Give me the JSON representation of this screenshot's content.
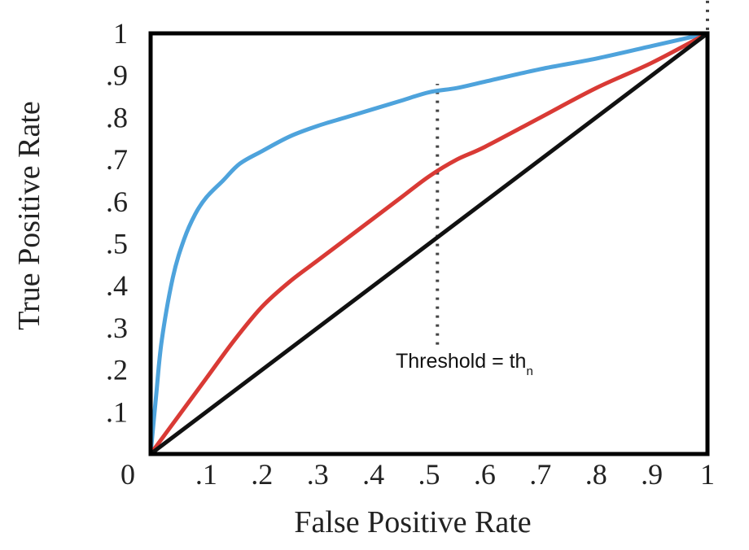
{
  "chart_data": {
    "type": "line",
    "title": "",
    "xlabel": "False Positive Rate",
    "ylabel": "True Positive Rate",
    "xlim": [
      0,
      1
    ],
    "ylim": [
      0,
      1
    ],
    "x_ticks": [
      "0",
      ".1",
      ".2",
      ".3",
      ".4",
      ".5",
      ".6",
      ".7",
      ".8",
      ".9",
      "1"
    ],
    "y_ticks": [
      ".1",
      ".2",
      ".3",
      ".4",
      ".5",
      ".6",
      ".7",
      ".8",
      ".9",
      "1"
    ],
    "grid": false,
    "series": [
      {
        "color": "#4ea3dc",
        "x": [
          0,
          0.01,
          0.02,
          0.04,
          0.06,
          0.08,
          0.1,
          0.13,
          0.16,
          0.2,
          0.25,
          0.3,
          0.35,
          0.4,
          0.45,
          0.5,
          0.55,
          0.6,
          0.7,
          0.8,
          0.9,
          1.0
        ],
        "y": [
          0,
          0.14,
          0.27,
          0.42,
          0.51,
          0.57,
          0.61,
          0.65,
          0.69,
          0.72,
          0.755,
          0.78,
          0.8,
          0.82,
          0.84,
          0.86,
          0.87,
          0.885,
          0.915,
          0.94,
          0.97,
          1.0
        ]
      },
      {
        "color": "#d93a35",
        "x": [
          0,
          0.05,
          0.1,
          0.15,
          0.2,
          0.25,
          0.3,
          0.35,
          0.4,
          0.45,
          0.5,
          0.55,
          0.6,
          0.7,
          0.8,
          0.9,
          1.0
        ],
        "y": [
          0,
          0.09,
          0.18,
          0.27,
          0.35,
          0.41,
          0.46,
          0.51,
          0.56,
          0.61,
          0.66,
          0.7,
          0.73,
          0.8,
          0.87,
          0.93,
          1.0
        ]
      },
      {
        "color": "#111111",
        "x": [
          0,
          1
        ],
        "y": [
          0,
          1
        ]
      }
    ],
    "reference_lines": [
      {
        "orientation": "vertical",
        "x": 0.515,
        "y_from": 0.26,
        "y_to": 0.88,
        "style": "dotted"
      },
      {
        "orientation": "vertical",
        "x": 1.0,
        "y_from": 0.54,
        "y_to": 1.08,
        "style": "dotted"
      }
    ],
    "annotations": [
      {
        "text": "Threshold = th",
        "subscript": "n",
        "x": 0.44,
        "y": 0.205
      }
    ]
  }
}
